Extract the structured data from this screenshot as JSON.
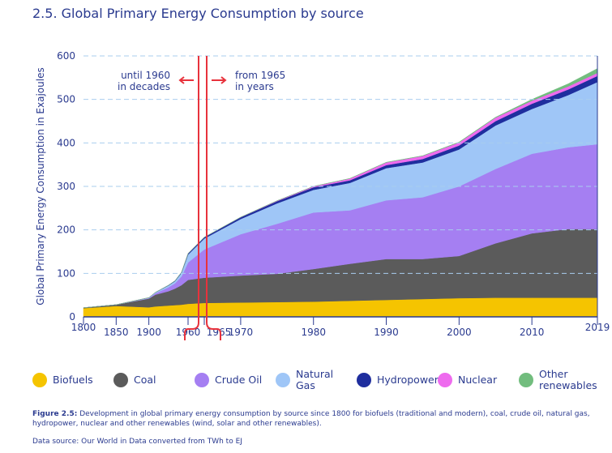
{
  "chart_data": {
    "type": "stacked_area",
    "title": "2.5. Global Primary Energy Consumption by source",
    "y_label": "Global Primary Energy Consumption in Exajoules",
    "annotations": [
      [
        "until 1960",
        "in decades"
      ],
      [
        "from 1965",
        "in years"
      ]
    ],
    "x": [
      1800,
      1850,
      1900,
      1910,
      1920,
      1930,
      1940,
      1950,
      1960,
      1965,
      1970,
      1975,
      1980,
      1985,
      1990,
      1995,
      2000,
      2005,
      2010,
      2015,
      2019
    ],
    "series": [
      {
        "name": "Biofuels",
        "color": "#f5c400",
        "values": [
          20,
          25,
          22,
          24,
          25,
          26,
          27,
          28,
          30,
          32,
          33,
          34,
          35,
          37,
          39,
          41,
          43,
          44,
          44,
          44,
          44
        ]
      },
      {
        "name": "Coal",
        "color": "#5b5b5b",
        "values": [
          1,
          3,
          20,
          27,
          30,
          33,
          38,
          45,
          55,
          58,
          62,
          65,
          75,
          85,
          94,
          92,
          97,
          125,
          148,
          158,
          158
        ]
      },
      {
        "name": "Crude Oil",
        "color": "#a57ff2",
        "values": [
          0,
          0,
          1,
          3,
          6,
          9,
          12,
          20,
          40,
          65,
          95,
          115,
          130,
          123,
          135,
          142,
          160,
          171,
          183,
          188,
          195
        ]
      },
      {
        "name": "Natural Gas",
        "color": "#9fc6f7",
        "values": [
          0,
          0,
          1,
          2,
          3,
          4,
          5,
          8,
          18,
          25,
          35,
          47,
          52,
          63,
          74,
          80,
          85,
          100,
          103,
          120,
          143
        ]
      },
      {
        "name": "Hydropower",
        "color": "#1f2e9e",
        "values": [
          0,
          0,
          0.2,
          0.3,
          0.5,
          0.7,
          1,
          1.5,
          2.5,
          3,
          4,
          5,
          6,
          6,
          7,
          8,
          9,
          10,
          12,
          13,
          14
        ]
      },
      {
        "name": "Nuclear",
        "color": "#ee6bee",
        "values": [
          0,
          0,
          0,
          0,
          0,
          0,
          0,
          0,
          0,
          0.1,
          0.2,
          1,
          2,
          4,
          6,
          7,
          7,
          8,
          7,
          7,
          7
        ]
      },
      {
        "name": "Other renewables",
        "color": "#72bd7e",
        "values": [
          0,
          0,
          0,
          0,
          0,
          0,
          0,
          0,
          0,
          0.1,
          0.1,
          0.1,
          0.2,
          0.3,
          0.5,
          0.5,
          1,
          1,
          3,
          6,
          10
        ]
      }
    ],
    "ylim": [
      0,
      600
    ],
    "yticks": [
      0,
      100,
      200,
      300,
      400,
      500,
      600
    ],
    "xlim": [
      1800,
      2019
    ],
    "xticks": [
      1800,
      1850,
      1900,
      1960,
      1965,
      1970,
      1980,
      1990,
      2000,
      2010,
      2019
    ],
    "grid": true
  },
  "caption": {
    "label": "Figure 2.5:",
    "text": "Development in global primary energy consumption by source since 1800 for biofuels (traditional and modern), coal, crude oil, natural gas, hydropower, nuclear and other renewables (wind, solar and other renewables)."
  },
  "source": "Data source: Our World in Data converted from TWh to EJ"
}
